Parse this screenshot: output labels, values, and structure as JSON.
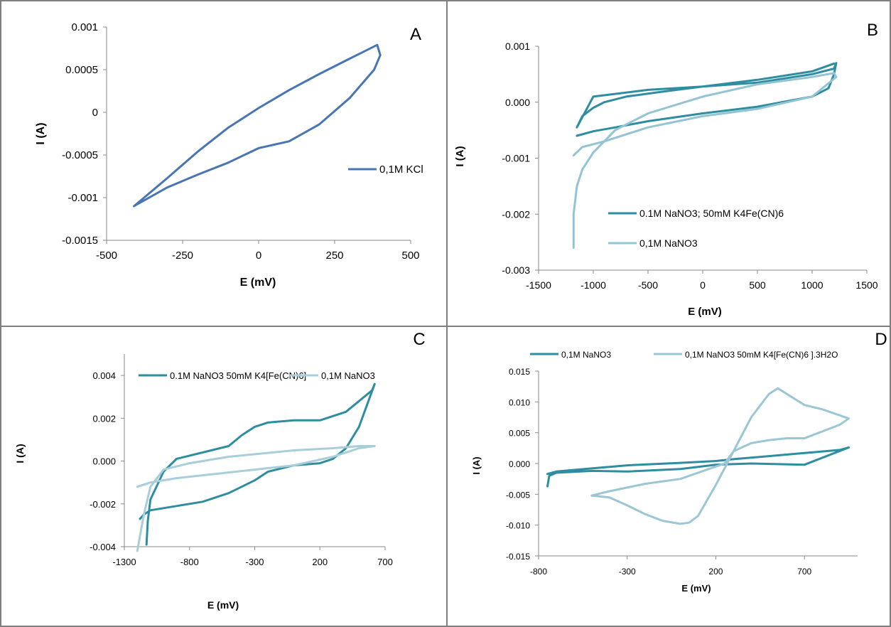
{
  "chart_data": [
    {
      "panel": "A",
      "type": "line",
      "title": "",
      "xlabel": "E (mV)",
      "ylabel": "I (A)",
      "xlim": [
        -500,
        500
      ],
      "ylim": [
        -0.0015,
        0.001
      ],
      "xticks": [
        "-500",
        "-250",
        "0",
        "250",
        "500"
      ],
      "yticks": [
        "0.001",
        "0.0005",
        "0",
        "-0.0005",
        "-0.001",
        "-0.0015"
      ],
      "legend": "right",
      "grid": false,
      "colors": {
        "series1": "#4a75b5"
      },
      "series": [
        {
          "name": "0,1M KCl",
          "x": [
            -410,
            -300,
            -200,
            -100,
            0,
            100,
            200,
            300,
            390,
            400,
            380,
            300,
            200,
            100,
            0,
            -100,
            -200,
            -300,
            -410
          ],
          "y": [
            -0.0011,
            -0.00077,
            -0.00046,
            -0.00018,
            5e-05,
            0.00026,
            0.00045,
            0.00063,
            0.00079,
            0.00067,
            0.0005,
            0.00017,
            -0.00014,
            -0.00034,
            -0.00042,
            -0.00059,
            -0.00073,
            -0.00088,
            -0.0011
          ]
        }
      ]
    },
    {
      "panel": "B",
      "type": "line",
      "title": "",
      "xlabel": "E (mV)",
      "ylabel": "I (A)",
      "xlim": [
        -1500,
        1500
      ],
      "ylim": [
        -0.003,
        0.001
      ],
      "xticks": [
        "-1500",
        "-1000",
        "-500",
        "0",
        "500",
        "1000",
        "1500"
      ],
      "yticks": [
        "0.001",
        "0.000",
        "-0.001",
        "-0.002",
        "-0.003"
      ],
      "legend": "bottom-right",
      "grid": false,
      "colors": {
        "series1": "#2e8ea0",
        "series2": "#93c4d3"
      },
      "series": [
        {
          "name": "0.1M NaNO3; 50mM K4Fe(CN)6",
          "x": [
            -1150,
            -1000,
            -800,
            -500,
            0,
            500,
            1000,
            1150,
            1200,
            1220,
            1200,
            1100,
            1000,
            500,
            0,
            -500,
            -1000,
            -1150,
            -1100,
            -1000,
            -900,
            -700,
            -400,
            0,
            500,
            1000,
            1200
          ],
          "y": [
            -0.0006,
            -0.00052,
            -0.00045,
            -0.00034,
            -0.0002,
            -8e-05,
            0.0001,
            0.00025,
            0.0005,
            0.0007,
            0.0006,
            0.00055,
            0.0005,
            0.00035,
            0.00028,
            0.00022,
            0.0001,
            -0.00045,
            -0.00025,
            -0.0001,
            0.0,
            0.0001,
            0.00018,
            0.00028,
            0.0004,
            0.00055,
            0.00069
          ]
        },
        {
          "name": "0,1M NaNO3",
          "x": [
            -1180,
            -1180,
            -1150,
            -1100,
            -1000,
            -800,
            -500,
            0,
            500,
            1000,
            1200,
            1220,
            1000,
            500,
            0,
            -500,
            -900,
            -1100,
            -1180
          ],
          "y": [
            -0.0026,
            -0.002,
            -0.0015,
            -0.0012,
            -0.0009,
            -0.0005,
            -0.0002,
            0.0001,
            0.00032,
            0.00045,
            0.00052,
            0.00045,
            0.0001,
            -0.00012,
            -0.00025,
            -0.00045,
            -0.0007,
            -0.0008,
            -0.00095
          ]
        }
      ]
    },
    {
      "panel": "C",
      "type": "line",
      "title": "",
      "xlabel": "E (mV)",
      "ylabel": "I (A)",
      "xlim": [
        -1300,
        700
      ],
      "ylim": [
        -0.004,
        0.005
      ],
      "xticks": [
        "-1300",
        "-800",
        "-300",
        "200",
        "700"
      ],
      "yticks": [
        "0.004",
        "0.002",
        "0.000",
        "-0.002",
        "-0.004"
      ],
      "legend": "top",
      "grid": false,
      "colors": {
        "series1": "#2e8ea0",
        "series2": "#a8cfd9"
      },
      "series": [
        {
          "name": "0.1M NaNO3  50mM K4[Fe(CN)6]",
          "x": [
            -1130,
            -1120,
            -1100,
            -1000,
            -900,
            -700,
            -500,
            -400,
            -300,
            -200,
            0,
            200,
            400,
            500,
            600,
            620,
            500,
            400,
            300,
            200,
            0,
            -200,
            -300,
            -500,
            -700,
            -900,
            -1000,
            -1100,
            -1150,
            -1180
          ],
          "y": [
            -0.0039,
            -0.0028,
            -0.0018,
            -0.0005,
            0.0001,
            0.0004,
            0.0007,
            0.0012,
            0.0016,
            0.0018,
            0.0019,
            0.0019,
            0.0023,
            0.0028,
            0.0033,
            0.0036,
            0.0016,
            0.0006,
            0.0001,
            -0.0001,
            -0.0002,
            -0.0005,
            -0.0009,
            -0.0015,
            -0.0019,
            -0.0021,
            -0.0022,
            -0.0023,
            -0.0025,
            -0.0027
          ]
        },
        {
          "name": "0,1M NaNO3",
          "x": [
            -1200,
            -1180,
            -1150,
            -1100,
            -1000,
            -800,
            -500,
            0,
            300,
            500,
            620,
            500,
            300,
            0,
            -300,
            -600,
            -900,
            -1100,
            -1200
          ],
          "y": [
            -0.0042,
            -0.0035,
            -0.0025,
            -0.0012,
            -0.0004,
            -0.0001,
            0.0002,
            0.0005,
            0.0006,
            0.0007,
            0.0007,
            0.0006,
            0.0002,
            -0.0002,
            -0.0004,
            -0.0006,
            -0.0008,
            -0.001,
            -0.0012
          ]
        }
      ]
    },
    {
      "panel": "D",
      "type": "line",
      "title": "",
      "xlabel": "E (mV)",
      "ylabel": "I (A)",
      "xlim": [
        -800,
        1000
      ],
      "ylim": [
        -0.015,
        0.015
      ],
      "xticks": [
        "-800",
        "-300",
        "200",
        "700"
      ],
      "yticks": [
        "0.015",
        "0.010",
        "0.005",
        "0.000",
        "-0.005",
        "-0.010",
        "-0.015"
      ],
      "legend": "top",
      "grid": false,
      "colors": {
        "series1": "#2e8ea0",
        "series2": "#9bc7d4"
      },
      "series": [
        {
          "name": "0,1M NaNO3",
          "x": [
            -750,
            -740,
            -700,
            -500,
            -300,
            0,
            200,
            400,
            700,
            950,
            900,
            700,
            500,
            300,
            200,
            0,
            -300,
            -500,
            -700,
            -750
          ],
          "y": [
            -0.0037,
            -0.002,
            -0.0015,
            -0.0012,
            -0.0013,
            -0.0009,
            -0.0002,
            0.0,
            -0.0002,
            0.0026,
            0.0022,
            0.0017,
            0.0012,
            0.0007,
            0.0004,
            0.0001,
            -0.0003,
            -0.0008,
            -0.0013,
            -0.0017
          ]
        },
        {
          "name": "0,1M NaNO3 50mM  K4[Fe(CN)6 ].3H2O",
          "x": [
            -500,
            -400,
            -300,
            -200,
            -100,
            0,
            50,
            100,
            200,
            300,
            400,
            500,
            550,
            700,
            800,
            950,
            900,
            700,
            600,
            500,
            400,
            300,
            250,
            200,
            100,
            0,
            -200,
            -400,
            -500
          ],
          "y": [
            -0.0052,
            -0.0055,
            -0.0068,
            -0.0082,
            -0.0093,
            -0.0098,
            -0.0096,
            -0.0085,
            -0.0035,
            0.002,
            0.0075,
            0.0113,
            0.0122,
            0.0095,
            0.0088,
            0.0073,
            0.0063,
            0.0041,
            0.0041,
            0.0038,
            0.0033,
            0.002,
            0.0,
            -0.0005,
            -0.0015,
            -0.0025,
            -0.0033,
            -0.0045,
            -0.0052
          ]
        }
      ]
    }
  ],
  "panels": [
    {
      "letter": "A",
      "legend": [
        "0,1M KCl"
      ],
      "xlabel": "E (mV)",
      "ylabel": "I (A)"
    },
    {
      "letter": "B",
      "legend": [
        "0.1M NaNO3; 50mM K4Fe(CN)6",
        "0,1M NaNO3"
      ],
      "xlabel": "E (mV)",
      "ylabel": "I (A)"
    },
    {
      "letter": "C",
      "legend": [
        "0.1M NaNO3  50mM K4[Fe(CN)6]",
        "0,1M NaNO3"
      ],
      "xlabel": "E (mV)",
      "ylabel": "I (A)"
    },
    {
      "letter": "D",
      "legend": [
        "0,1M NaNO3",
        "0,1M NaNO3 50mM  K4[Fe(CN)6 ].3H2O"
      ],
      "xlabel": "E (mV)",
      "ylabel": "I (A)"
    }
  ]
}
